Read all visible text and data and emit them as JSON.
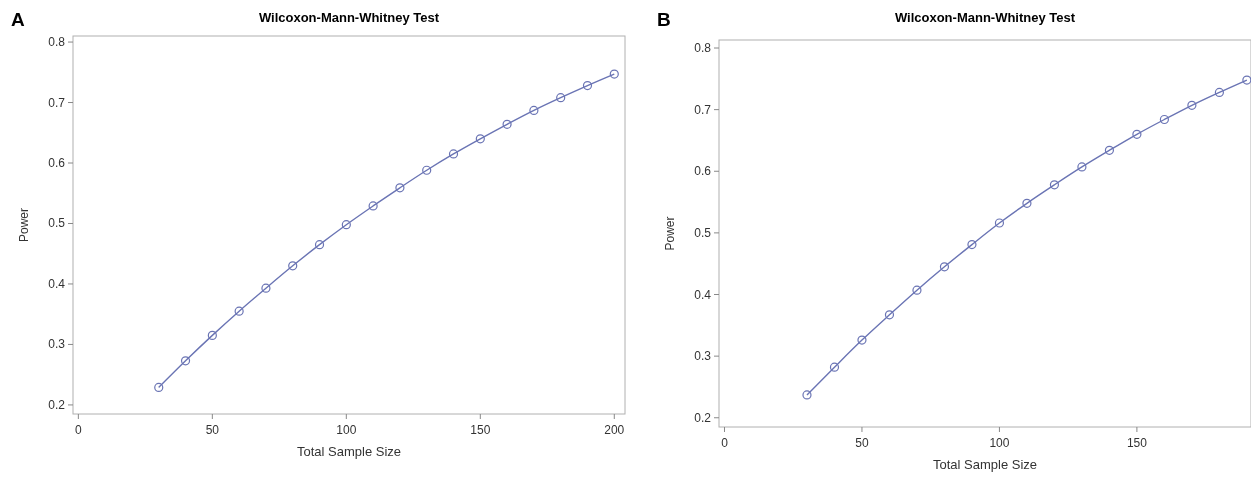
{
  "chart_data": [
    {
      "type": "line",
      "title": "Wilcoxon-Mann-Whitney Test",
      "xlabel": "Total Sample Size",
      "ylabel": "Power",
      "annotations": [
        "A"
      ],
      "x": [
        30,
        40,
        50,
        60,
        70,
        80,
        90,
        100,
        110,
        120,
        130,
        140,
        150,
        160,
        170,
        180,
        190,
        200
      ],
      "series": [
        {
          "color": "#6a74b4",
          "values": [
            0.229,
            0.273,
            0.315,
            0.355,
            0.393,
            0.43,
            0.465,
            0.498,
            0.529,
            0.559,
            0.588,
            0.615,
            0.64,
            0.664,
            0.687,
            0.708,
            0.728,
            0.747
          ]
        }
      ],
      "xlim": [
        -2,
        204
      ],
      "xticks": [
        0,
        50,
        100,
        150,
        200
      ],
      "ylim": [
        0.185,
        0.81
      ],
      "yticks": [
        0.2,
        0.3,
        0.4,
        0.5,
        0.6,
        0.7,
        0.8
      ],
      "marker": "circle",
      "grid": false
    },
    {
      "type": "line",
      "title": "Wilcoxon-Mann-Whitney Test",
      "xlabel": "Total Sample Size",
      "ylabel": "Power",
      "annotations": [
        "B"
      ],
      "x": [
        30,
        40,
        50,
        60,
        70,
        80,
        90,
        100,
        110,
        120,
        130,
        140,
        150,
        160,
        170,
        180,
        190
      ],
      "series": [
        {
          "color": "#6a74b4",
          "values": [
            0.237,
            0.282,
            0.326,
            0.367,
            0.407,
            0.445,
            0.481,
            0.516,
            0.548,
            0.578,
            0.607,
            0.634,
            0.66,
            0.684,
            0.707,
            0.728,
            0.748
          ]
        }
      ],
      "xlim": [
        -2,
        191.5
      ],
      "xticks": [
        0,
        50,
        100,
        150
      ],
      "ylim": [
        0.185,
        0.813
      ],
      "yticks": [
        0.2,
        0.3,
        0.4,
        0.5,
        0.6,
        0.7,
        0.8
      ],
      "marker": "circle",
      "grid": false
    }
  ]
}
